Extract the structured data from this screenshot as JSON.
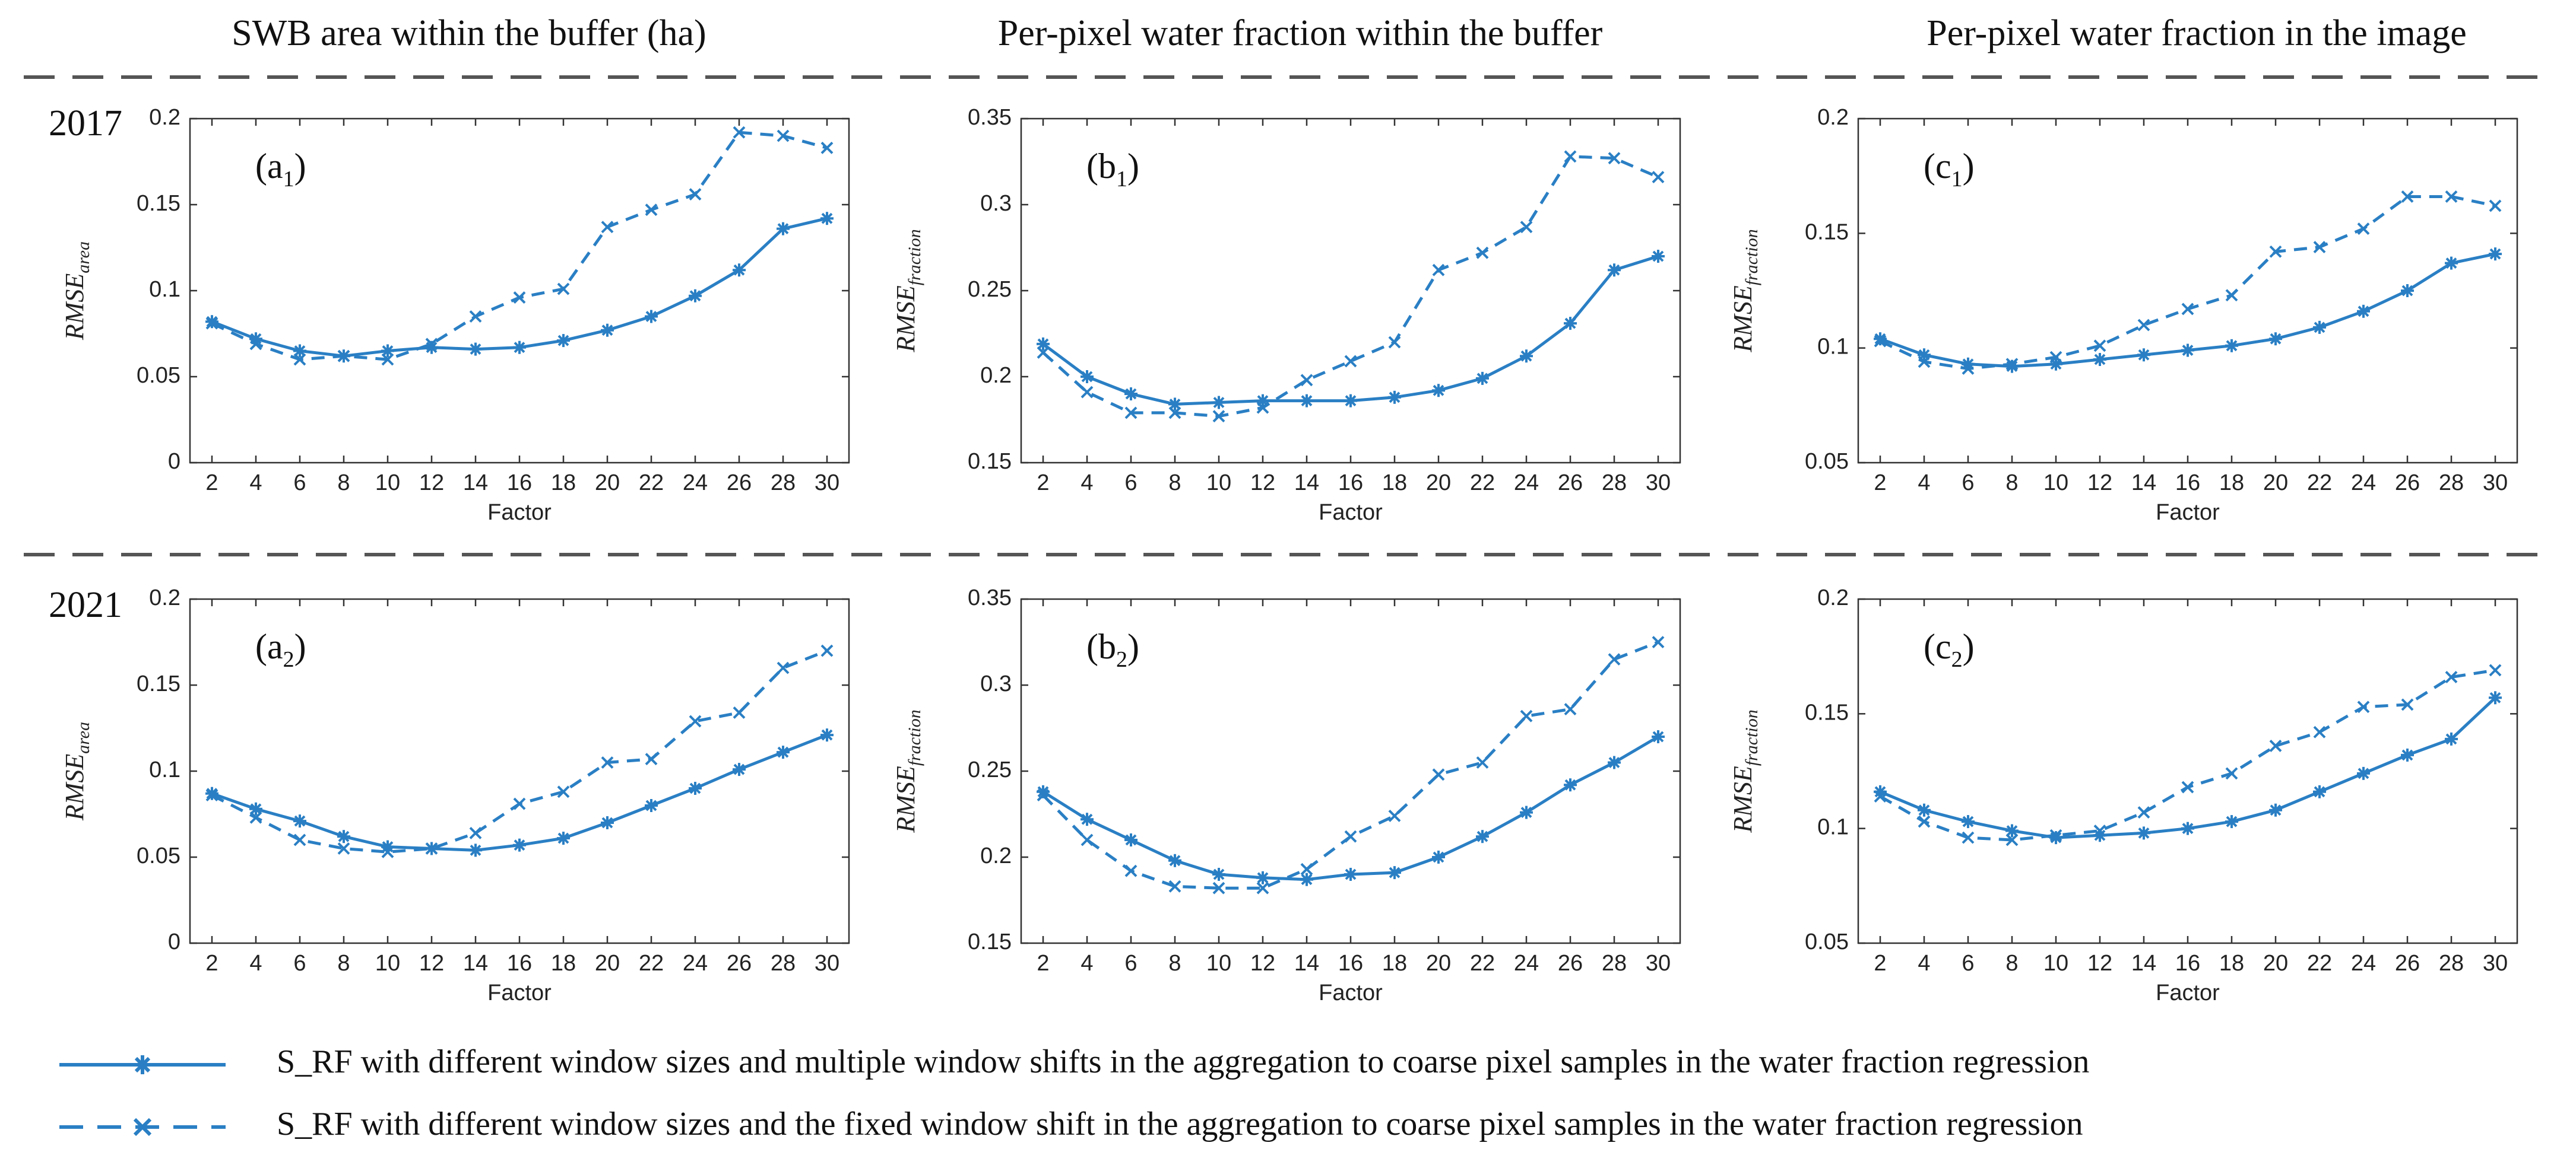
{
  "column_titles": [
    "SWB area within the buffer (ha)",
    "Per-pixel water fraction within the buffer",
    "Per-pixel water fraction in the image"
  ],
  "row_labels": [
    "2017",
    "2021"
  ],
  "legend": [
    {
      "style": "solid",
      "marker": "asterisk",
      "text": "S_RF with different window sizes and multiple window shifts in the aggregation to coarse pixel samples in the water fraction regression"
    },
    {
      "style": "dashed",
      "marker": "x",
      "text": "S_RF with different window sizes and the fixed window shift in the aggregation to coarse pixel samples in the water fraction regression"
    }
  ],
  "colors": {
    "series": "#2a7fc4",
    "axis": "#333333",
    "divider": "#555555"
  },
  "chart_data": [
    {
      "type": "line",
      "panel": "(a1)",
      "tag": "a",
      "tag_sub": "1",
      "row": "2017",
      "column": "SWB area within the buffer (ha)",
      "xlabel": "Factor",
      "ylabel_main": "RMSE",
      "ylabel_sub": "area",
      "x": [
        2,
        4,
        6,
        8,
        10,
        12,
        14,
        16,
        18,
        20,
        22,
        24,
        26,
        28,
        30
      ],
      "xticks": [
        2,
        4,
        6,
        8,
        10,
        12,
        14,
        16,
        18,
        20,
        22,
        24,
        26,
        28,
        30
      ],
      "ylim": [
        0,
        0.2
      ],
      "yticks": [
        0,
        0.05,
        0.1,
        0.15,
        0.2
      ],
      "ytick_labels": [
        "0",
        "0.05",
        "0.1",
        "0.15",
        "0.2"
      ],
      "series": [
        {
          "name": "multiple window shifts",
          "style": "solid",
          "marker": "asterisk",
          "values": [
            0.082,
            0.072,
            0.065,
            0.062,
            0.065,
            0.067,
            0.066,
            0.067,
            0.071,
            0.077,
            0.085,
            0.097,
            0.112,
            0.136,
            0.142
          ]
        },
        {
          "name": "fixed window shift",
          "style": "dashed",
          "marker": "x",
          "values": [
            0.081,
            0.069,
            0.06,
            0.062,
            0.06,
            0.069,
            0.085,
            0.096,
            0.101,
            0.137,
            0.147,
            0.156,
            0.192,
            0.19,
            0.183
          ]
        }
      ]
    },
    {
      "type": "line",
      "panel": "(b1)",
      "tag": "b",
      "tag_sub": "1",
      "row": "2017",
      "column": "Per-pixel water fraction within the buffer",
      "xlabel": "Factor",
      "ylabel_main": "RMSE",
      "ylabel_sub": "fraction",
      "x": [
        2,
        4,
        6,
        8,
        10,
        12,
        14,
        16,
        18,
        20,
        22,
        24,
        26,
        28,
        30
      ],
      "xticks": [
        2,
        4,
        6,
        8,
        10,
        12,
        14,
        16,
        18,
        20,
        22,
        24,
        26,
        28,
        30
      ],
      "ylim": [
        0.15,
        0.35
      ],
      "yticks": [
        0.15,
        0.2,
        0.25,
        0.3,
        0.35
      ],
      "ytick_labels": [
        "0.15",
        "0.2",
        "0.25",
        "0.3",
        "0.35"
      ],
      "series": [
        {
          "name": "multiple window shifts",
          "style": "solid",
          "marker": "asterisk",
          "values": [
            0.219,
            0.2,
            0.19,
            0.184,
            0.185,
            0.186,
            0.186,
            0.186,
            0.188,
            0.192,
            0.199,
            0.212,
            0.231,
            0.262,
            0.27
          ]
        },
        {
          "name": "fixed window shift",
          "style": "dashed",
          "marker": "x",
          "values": [
            0.214,
            0.191,
            0.179,
            0.179,
            0.177,
            0.182,
            0.198,
            0.209,
            0.22,
            0.262,
            0.272,
            0.287,
            0.328,
            0.327,
            0.316
          ]
        }
      ]
    },
    {
      "type": "line",
      "panel": "(c1)",
      "tag": "c",
      "tag_sub": "1",
      "row": "2017",
      "column": "Per-pixel water fraction in the image",
      "xlabel": "Factor",
      "ylabel_main": "RMSE",
      "ylabel_sub": "fraction",
      "x": [
        2,
        4,
        6,
        8,
        10,
        12,
        14,
        16,
        18,
        20,
        22,
        24,
        26,
        28,
        30
      ],
      "xticks": [
        2,
        4,
        6,
        8,
        10,
        12,
        14,
        16,
        18,
        20,
        22,
        24,
        26,
        28,
        30
      ],
      "ylim": [
        0.05,
        0.2
      ],
      "yticks": [
        0.05,
        0.1,
        0.15,
        0.2
      ],
      "ytick_labels": [
        "0.05",
        "0.1",
        "0.15",
        "0.2"
      ],
      "series": [
        {
          "name": "multiple window shifts",
          "style": "solid",
          "marker": "asterisk",
          "values": [
            0.104,
            0.097,
            0.093,
            0.092,
            0.093,
            0.095,
            0.097,
            0.099,
            0.101,
            0.104,
            0.109,
            0.116,
            0.125,
            0.137,
            0.141
          ]
        },
        {
          "name": "fixed window shift",
          "style": "dashed",
          "marker": "x",
          "values": [
            0.103,
            0.094,
            0.091,
            0.093,
            0.096,
            0.101,
            0.11,
            0.117,
            0.123,
            0.142,
            0.144,
            0.152,
            0.166,
            0.166,
            0.162
          ]
        }
      ]
    },
    {
      "type": "line",
      "panel": "(a2)",
      "tag": "a",
      "tag_sub": "2",
      "row": "2021",
      "column": "SWB area within the buffer (ha)",
      "xlabel": "Factor",
      "ylabel_main": "RMSE",
      "ylabel_sub": "area",
      "x": [
        2,
        4,
        6,
        8,
        10,
        12,
        14,
        16,
        18,
        20,
        22,
        24,
        26,
        28,
        30
      ],
      "xticks": [
        2,
        4,
        6,
        8,
        10,
        12,
        14,
        16,
        18,
        20,
        22,
        24,
        26,
        28,
        30
      ],
      "ylim": [
        0,
        0.2
      ],
      "yticks": [
        0,
        0.05,
        0.1,
        0.15,
        0.2
      ],
      "ytick_labels": [
        "0",
        "0.05",
        "0.1",
        "0.15",
        "0.2"
      ],
      "series": [
        {
          "name": "multiple window shifts",
          "style": "solid",
          "marker": "asterisk",
          "values": [
            0.087,
            0.078,
            0.071,
            0.062,
            0.056,
            0.055,
            0.054,
            0.057,
            0.061,
            0.07,
            0.08,
            0.09,
            0.101,
            0.111,
            0.121
          ]
        },
        {
          "name": "fixed window shift",
          "style": "dashed",
          "marker": "x",
          "values": [
            0.086,
            0.073,
            0.06,
            0.055,
            0.053,
            0.055,
            0.064,
            0.081,
            0.088,
            0.105,
            0.107,
            0.129,
            0.134,
            0.16,
            0.17
          ]
        }
      ]
    },
    {
      "type": "line",
      "panel": "(b2)",
      "tag": "b",
      "tag_sub": "2",
      "row": "2021",
      "column": "Per-pixel water fraction within the buffer",
      "xlabel": "Factor",
      "ylabel_main": "RMSE",
      "ylabel_sub": "fraction",
      "x": [
        2,
        4,
        6,
        8,
        10,
        12,
        14,
        16,
        18,
        20,
        22,
        24,
        26,
        28,
        30
      ],
      "xticks": [
        2,
        4,
        6,
        8,
        10,
        12,
        14,
        16,
        18,
        20,
        22,
        24,
        26,
        28,
        30
      ],
      "ylim": [
        0.15,
        0.35
      ],
      "yticks": [
        0.15,
        0.2,
        0.25,
        0.3,
        0.35
      ],
      "ytick_labels": [
        "0.15",
        "0.2",
        "0.25",
        "0.3",
        "0.35"
      ],
      "series": [
        {
          "name": "multiple window shifts",
          "style": "solid",
          "marker": "asterisk",
          "values": [
            0.238,
            0.222,
            0.21,
            0.198,
            0.19,
            0.188,
            0.187,
            0.19,
            0.191,
            0.2,
            0.212,
            0.226,
            0.242,
            0.255,
            0.27
          ]
        },
        {
          "name": "fixed window shift",
          "style": "dashed",
          "marker": "x",
          "values": [
            0.236,
            0.21,
            0.192,
            0.183,
            0.182,
            0.182,
            0.193,
            0.212,
            0.224,
            0.248,
            0.255,
            0.282,
            0.286,
            0.315,
            0.325
          ]
        }
      ]
    },
    {
      "type": "line",
      "panel": "(c2)",
      "tag": "c",
      "tag_sub": "2",
      "row": "2021",
      "column": "Per-pixel water fraction in the image",
      "xlabel": "Factor",
      "ylabel_main": "RMSE",
      "ylabel_sub": "fraction",
      "x": [
        2,
        4,
        6,
        8,
        10,
        12,
        14,
        16,
        18,
        20,
        22,
        24,
        26,
        28,
        30
      ],
      "xticks": [
        2,
        4,
        6,
        8,
        10,
        12,
        14,
        16,
        18,
        20,
        22,
        24,
        26,
        28,
        30
      ],
      "ylim": [
        0.05,
        0.2
      ],
      "yticks": [
        0.05,
        0.1,
        0.15,
        0.2
      ],
      "ytick_labels": [
        "0.05",
        "0.1",
        "0.15",
        "0.2"
      ],
      "series": [
        {
          "name": "multiple window shifts",
          "style": "solid",
          "marker": "asterisk",
          "values": [
            0.116,
            0.108,
            0.103,
            0.099,
            0.096,
            0.097,
            0.098,
            0.1,
            0.103,
            0.108,
            0.116,
            0.124,
            0.132,
            0.139,
            0.157
          ]
        },
        {
          "name": "fixed window shift",
          "style": "dashed",
          "marker": "x",
          "values": [
            0.114,
            0.103,
            0.096,
            0.095,
            0.097,
            0.099,
            0.107,
            0.118,
            0.124,
            0.136,
            0.142,
            0.153,
            0.154,
            0.166,
            0.169
          ]
        }
      ]
    }
  ]
}
